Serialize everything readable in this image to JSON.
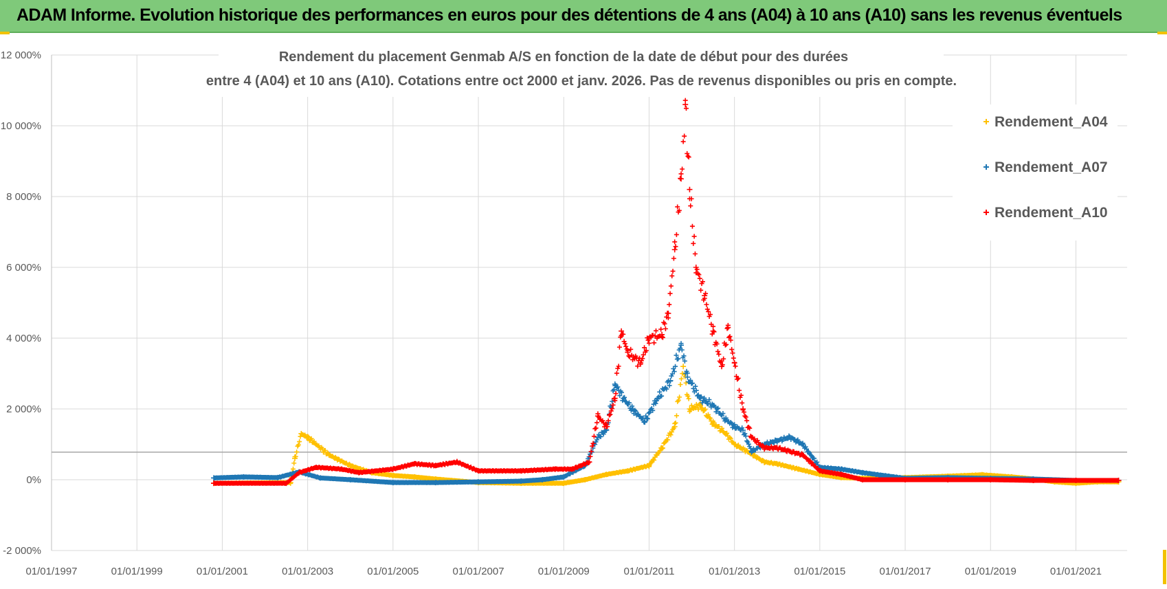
{
  "header": {
    "title": "ADAM Informe. Evolution historique des performances en euros pour des détentions de 4 ans (A04) à 10 ans (A10) sans les revenus éventuels"
  },
  "colors": {
    "banner": "#7fc97a",
    "A04": "#ffc000",
    "A07": "#1f77b4",
    "A10": "#ff0000",
    "grid": "#d9d9d9",
    "refline": "#a6a6a6"
  },
  "chart_data": {
    "type": "scatter",
    "title_lines": [
      "Rendement du placement Genmab A/S en fonction de la date de début pour des durées",
      "entre 4 (A04) et 10 ans (A10). Cotations entre oct 2000 et janv. 2026. Pas de revenus disponibles ou pris en compte."
    ],
    "x_tick_labels": [
      "01/01/1997",
      "01/01/1999",
      "01/01/2001",
      "01/01/2003",
      "01/01/2005",
      "01/01/2007",
      "01/01/2009",
      "01/01/2011",
      "01/01/2013",
      "01/01/2015",
      "01/01/2017",
      "01/01/2019",
      "01/01/2021"
    ],
    "x_tick_years": [
      1997,
      1999,
      2001,
      2003,
      2005,
      2007,
      2009,
      2011,
      2013,
      2015,
      2017,
      2019,
      2021
    ],
    "xlim": [
      1997.0,
      2022.2
    ],
    "y_tick_labels": [
      "12 000%",
      "10 000%",
      "8 000%",
      "6 000%",
      "4 000%",
      "2 000%",
      "0%",
      "-2 000%"
    ],
    "y_tick_values": [
      12000,
      10000,
      8000,
      6000,
      4000,
      2000,
      0,
      -2000
    ],
    "ylim": [
      -2000,
      12000
    ],
    "reference_line_y": 780,
    "legend_position": "right",
    "series": [
      {
        "name": "Rendement_A04",
        "points": [
          [
            2000.8,
            -100
          ],
          [
            2002.6,
            -80
          ],
          [
            2002.7,
            600
          ],
          [
            2002.85,
            1300
          ],
          [
            2003.0,
            1200
          ],
          [
            2003.5,
            700
          ],
          [
            2004.0,
            400
          ],
          [
            2004.5,
            200
          ],
          [
            2005.0,
            120
          ],
          [
            2005.5,
            80
          ],
          [
            2006.0,
            20
          ],
          [
            2007.0,
            -80
          ],
          [
            2008.0,
            -100
          ],
          [
            2009.0,
            -100
          ],
          [
            2009.5,
            0
          ],
          [
            2010.0,
            150
          ],
          [
            2010.5,
            250
          ],
          [
            2011.0,
            400
          ],
          [
            2011.3,
            900
          ],
          [
            2011.6,
            1500
          ],
          [
            2011.8,
            3200
          ],
          [
            2011.95,
            2000
          ],
          [
            2012.2,
            2100
          ],
          [
            2012.5,
            1600
          ],
          [
            2012.8,
            1300
          ],
          [
            2013.0,
            1000
          ],
          [
            2013.3,
            800
          ],
          [
            2013.7,
            500
          ],
          [
            2014.0,
            450
          ],
          [
            2014.5,
            300
          ],
          [
            2015.0,
            150
          ],
          [
            2015.5,
            60
          ],
          [
            2016.0,
            40
          ],
          [
            2017.0,
            60
          ],
          [
            2018.0,
            100
          ],
          [
            2018.8,
            140
          ],
          [
            2019.5,
            80
          ],
          [
            2020.0,
            20
          ],
          [
            2020.5,
            -60
          ],
          [
            2021.0,
            -100
          ],
          [
            2021.5,
            -60
          ],
          [
            2022.0,
            -60
          ]
        ]
      },
      {
        "name": "Rendement_A07",
        "points": [
          [
            2000.8,
            50
          ],
          [
            2001.5,
            80
          ],
          [
            2002.3,
            60
          ],
          [
            2002.8,
            220
          ],
          [
            2003.3,
            50
          ],
          [
            2004.0,
            0
          ],
          [
            2005.0,
            -80
          ],
          [
            2006.0,
            -80
          ],
          [
            2007.0,
            -60
          ],
          [
            2008.0,
            -40
          ],
          [
            2008.5,
            0
          ],
          [
            2009.0,
            80
          ],
          [
            2009.5,
            400
          ],
          [
            2009.8,
            1200
          ],
          [
            2010.0,
            1400
          ],
          [
            2010.2,
            2700
          ],
          [
            2010.4,
            2300
          ],
          [
            2010.6,
            2000
          ],
          [
            2010.9,
            1650
          ],
          [
            2011.2,
            2300
          ],
          [
            2011.5,
            2800
          ],
          [
            2011.75,
            3800
          ],
          [
            2011.9,
            2900
          ],
          [
            2012.2,
            2300
          ],
          [
            2012.5,
            2100
          ],
          [
            2012.8,
            1700
          ],
          [
            2013.0,
            1500
          ],
          [
            2013.2,
            1400
          ],
          [
            2013.4,
            800
          ],
          [
            2013.7,
            1000
          ],
          [
            2014.0,
            1100
          ],
          [
            2014.3,
            1200
          ],
          [
            2014.6,
            1000
          ],
          [
            2015.0,
            350
          ],
          [
            2015.5,
            300
          ],
          [
            2016.0,
            200
          ],
          [
            2017.0,
            40
          ],
          [
            2018.0,
            60
          ],
          [
            2019.0,
            40
          ],
          [
            2020.0,
            20
          ],
          [
            2021.0,
            -20
          ],
          [
            2022.0,
            -20
          ]
        ]
      },
      {
        "name": "Rendement_A10",
        "points": [
          [
            2000.8,
            -100
          ],
          [
            2002.5,
            -100
          ],
          [
            2002.8,
            200
          ],
          [
            2003.2,
            350
          ],
          [
            2003.8,
            300
          ],
          [
            2004.2,
            200
          ],
          [
            2005.0,
            300
          ],
          [
            2005.5,
            450
          ],
          [
            2006.0,
            400
          ],
          [
            2006.5,
            500
          ],
          [
            2007.0,
            250
          ],
          [
            2008.0,
            250
          ],
          [
            2008.8,
            300
          ],
          [
            2009.2,
            300
          ],
          [
            2009.6,
            500
          ],
          [
            2009.8,
            1800
          ],
          [
            2010.0,
            1500
          ],
          [
            2010.2,
            2300
          ],
          [
            2010.35,
            4200
          ],
          [
            2010.5,
            3600
          ],
          [
            2010.8,
            3300
          ],
          [
            2011.0,
            4000
          ],
          [
            2011.3,
            4100
          ],
          [
            2011.45,
            4700
          ],
          [
            2011.6,
            6500
          ],
          [
            2011.75,
            8500
          ],
          [
            2011.85,
            10600
          ],
          [
            2011.95,
            8200
          ],
          [
            2012.1,
            6000
          ],
          [
            2012.3,
            5200
          ],
          [
            2012.5,
            4200
          ],
          [
            2012.7,
            3200
          ],
          [
            2012.85,
            4300
          ],
          [
            2013.0,
            3300
          ],
          [
            2013.2,
            2000
          ],
          [
            2013.4,
            1200
          ],
          [
            2013.7,
            900
          ],
          [
            2014.0,
            900
          ],
          [
            2014.3,
            800
          ],
          [
            2014.6,
            700
          ],
          [
            2015.0,
            250
          ],
          [
            2015.5,
            150
          ],
          [
            2016.0,
            0
          ],
          [
            2017.0,
            0
          ],
          [
            2018.0,
            0
          ],
          [
            2019.0,
            0
          ],
          [
            2020.0,
            -20
          ],
          [
            2021.0,
            -20
          ],
          [
            2022.0,
            -20
          ]
        ]
      }
    ]
  }
}
